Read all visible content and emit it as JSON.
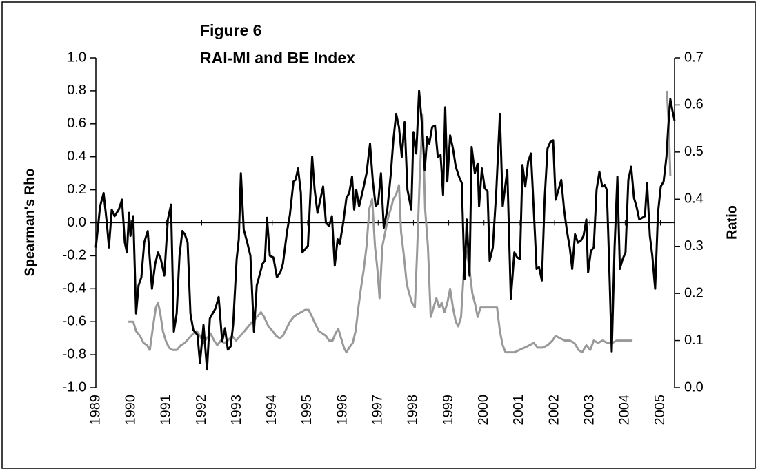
{
  "chart_data": {
    "type": "line",
    "title": "Figure 6",
    "subtitle": "RAI-MI and BE Index",
    "y_label": "Spearman's Rho",
    "y2_label": "Ratio",
    "xlim": [
      1989,
      2005.4
    ],
    "xticks": [
      1989,
      1990,
      1991,
      1992,
      1993,
      1994,
      1995,
      1996,
      1997,
      1998,
      1999,
      2000,
      2001,
      2002,
      2003,
      2004,
      2005
    ],
    "ylim": [
      -1,
      1
    ],
    "yticks": [
      {
        "value": -1,
        "label": "-1.0"
      },
      -0.8,
      -0.6,
      -0.4,
      -0.2,
      {
        "value": 0,
        "label": "0.0"
      },
      0.2,
      0.4,
      0.6,
      0.8,
      {
        "value": 1,
        "label": "1.0"
      }
    ],
    "y2lim": [
      0,
      0.7
    ],
    "y2ticks": [
      {
        "value": 0,
        "label": "0.0"
      },
      0.1,
      0.2,
      0.3,
      0.4,
      0.5,
      0.6,
      0.7
    ],
    "series": [
      {
        "color": "#000000",
        "x": [
          1989.0,
          1989.12,
          1989.22,
          1989.31,
          1989.37,
          1989.45,
          1989.53,
          1989.65,
          1989.74,
          1989.82,
          1989.88,
          1989.94,
          1989.98,
          1990.06,
          1990.14,
          1990.21,
          1990.29,
          1990.37,
          1990.47,
          1990.59,
          1990.68,
          1990.76,
          1990.84,
          1990.94,
          1991.04,
          1991.13,
          1991.21,
          1991.29,
          1991.37,
          1991.45,
          1991.52,
          1991.6,
          1991.68,
          1991.76,
          1991.88,
          1991.95,
          1992.05,
          1992.15,
          1992.23,
          1992.31,
          1992.39,
          1992.48,
          1992.58,
          1992.66,
          1992.74,
          1992.82,
          1992.89,
          1992.99,
          1993.05,
          1993.11,
          1993.19,
          1993.29,
          1993.38,
          1993.48,
          1993.56,
          1993.66,
          1993.72,
          1993.79,
          1993.85,
          1993.93,
          1994.03,
          1994.13,
          1994.23,
          1994.3,
          1994.42,
          1994.5,
          1994.6,
          1994.66,
          1994.73,
          1994.81,
          1994.85,
          1994.93,
          1995.01,
          1995.13,
          1995.2,
          1995.28,
          1995.36,
          1995.44,
          1995.52,
          1995.61,
          1995.69,
          1995.77,
          1995.85,
          1995.91,
          1996.01,
          1996.1,
          1996.18,
          1996.26,
          1996.32,
          1996.38,
          1996.46,
          1996.57,
          1996.67,
          1996.77,
          1996.85,
          1996.93,
          1997.0,
          1997.08,
          1997.16,
          1997.26,
          1997.36,
          1997.43,
          1997.51,
          1997.59,
          1997.67,
          1997.75,
          1997.83,
          1997.94,
          1998.0,
          1998.08,
          1998.16,
          1998.24,
          1998.32,
          1998.39,
          1998.45,
          1998.53,
          1998.61,
          1998.69,
          1998.77,
          1998.84,
          1998.9,
          1998.96,
          1999.04,
          1999.12,
          1999.2,
          1999.29,
          1999.37,
          1999.45,
          1999.51,
          1999.59,
          1999.65,
          1999.74,
          1999.82,
          1999.86,
          1999.94,
          2000.02,
          2000.1,
          2000.16,
          2000.25,
          2000.35,
          2000.45,
          2000.53,
          2000.66,
          2000.76,
          2000.86,
          2000.94,
          2001.02,
          2001.09,
          2001.17,
          2001.25,
          2001.33,
          2001.41,
          2001.49,
          2001.56,
          2001.64,
          2001.72,
          2001.8,
          2001.88,
          2001.96,
          2002.03,
          2002.11,
          2002.19,
          2002.27,
          2002.35,
          2002.43,
          2002.5,
          2002.58,
          2002.66,
          2002.74,
          2002.82,
          2002.9,
          2002.95,
          2003.03,
          2003.11,
          2003.19,
          2003.27,
          2003.35,
          2003.42,
          2003.48,
          2003.54,
          2003.62,
          2003.7,
          2003.78,
          2003.85,
          2003.93,
          2004.01,
          2004.09,
          2004.17,
          2004.25,
          2004.32,
          2004.4,
          2004.48,
          2004.56,
          2004.62,
          2004.7,
          2004.77,
          2004.85,
          2004.93,
          2005.01,
          2005.09,
          2005.17,
          2005.22,
          2005.28,
          2005.34,
          2005.4
        ],
        "values": [
          -0.15,
          0.1,
          0.18,
          0.0,
          -0.15,
          0.08,
          0.04,
          0.08,
          0.14,
          -0.12,
          -0.18,
          0.06,
          -0.08,
          0.04,
          -0.55,
          -0.38,
          -0.33,
          -0.12,
          -0.05,
          -0.4,
          -0.25,
          -0.18,
          -0.22,
          -0.32,
          0.02,
          0.11,
          -0.66,
          -0.55,
          -0.2,
          -0.05,
          -0.07,
          -0.12,
          -0.55,
          -0.65,
          -0.68,
          -0.85,
          -0.62,
          -0.89,
          -0.58,
          -0.55,
          -0.52,
          -0.45,
          -0.72,
          -0.64,
          -0.77,
          -0.75,
          -0.62,
          -0.22,
          -0.1,
          0.3,
          -0.04,
          -0.12,
          -0.2,
          -0.66,
          -0.38,
          -0.3,
          -0.25,
          -0.23,
          0.03,
          -0.2,
          -0.21,
          -0.33,
          -0.3,
          -0.25,
          -0.05,
          0.05,
          0.25,
          0.26,
          0.33,
          0.18,
          -0.18,
          -0.16,
          -0.14,
          0.4,
          0.2,
          0.06,
          0.14,
          0.22,
          0.0,
          -0.02,
          0.04,
          -0.26,
          -0.1,
          -0.13,
          0.0,
          0.15,
          0.18,
          0.28,
          0.08,
          0.2,
          0.1,
          0.2,
          0.3,
          0.48,
          0.25,
          0.1,
          0.12,
          0.3,
          -0.03,
          0.08,
          0.3,
          0.5,
          0.66,
          0.58,
          0.4,
          0.61,
          0.2,
          0.08,
          0.55,
          0.42,
          0.8,
          0.6,
          0.32,
          0.52,
          0.48,
          0.58,
          0.59,
          0.4,
          0.41,
          0.17,
          0.7,
          0.25,
          0.53,
          0.45,
          0.34,
          0.28,
          0.24,
          -0.34,
          0.02,
          -0.32,
          0.46,
          0.3,
          0.36,
          0.1,
          0.33,
          0.21,
          0.19,
          -0.23,
          -0.15,
          0.2,
          0.66,
          0.1,
          0.32,
          -0.46,
          -0.18,
          -0.21,
          -0.22,
          0.35,
          0.22,
          0.37,
          0.42,
          0.08,
          -0.28,
          -0.27,
          -0.35,
          0.15,
          0.45,
          0.49,
          0.5,
          0.14,
          0.2,
          0.26,
          0.08,
          -0.05,
          -0.15,
          -0.28,
          -0.07,
          -0.12,
          -0.11,
          -0.08,
          0.02,
          -0.3,
          -0.17,
          -0.15,
          0.2,
          0.31,
          0.22,
          0.23,
          0.2,
          -0.2,
          -0.78,
          -0.15,
          0.28,
          -0.28,
          -0.22,
          -0.18,
          0.26,
          0.34,
          0.15,
          0.1,
          0.02,
          0.03,
          0.04,
          0.24,
          -0.08,
          -0.2,
          -0.4,
          0.06,
          0.22,
          0.25,
          0.4,
          0.58,
          0.75,
          0.68,
          0.62
        ]
      },
      {
        "color": "#999999",
        "axis": "y2",
        "x": [
          1989.92,
          1990.06,
          1990.14,
          1990.25,
          1990.35,
          1990.45,
          1990.53,
          1990.62,
          1990.7,
          1990.76,
          1990.82,
          1990.9,
          1990.98,
          1991.07,
          1991.17,
          1991.29,
          1991.41,
          1991.52,
          1991.64,
          1991.76,
          1991.86,
          1991.95,
          1992.05,
          1992.15,
          1992.25,
          1992.35,
          1992.44,
          1992.54,
          1992.64,
          1992.74,
          1992.86,
          1992.97,
          1993.09,
          1993.21,
          1993.32,
          1993.44,
          1993.56,
          1993.68,
          1993.77,
          1993.89,
          1994.01,
          1994.11,
          1994.21,
          1994.3,
          1994.4,
          1994.5,
          1994.6,
          1994.69,
          1994.81,
          1994.93,
          1995.03,
          1995.13,
          1995.22,
          1995.32,
          1995.42,
          1995.52,
          1995.61,
          1995.71,
          1995.79,
          1995.87,
          1995.95,
          1996.03,
          1996.1,
          1996.18,
          1996.28,
          1996.36,
          1996.44,
          1996.51,
          1996.59,
          1996.67,
          1996.75,
          1996.83,
          1996.91,
          1996.98,
          1997.04,
          1997.12,
          1997.2,
          1997.28,
          1997.36,
          1997.43,
          1997.51,
          1997.59,
          1997.65,
          1997.73,
          1997.81,
          1997.88,
          1997.96,
          1998.04,
          1998.1,
          1998.18,
          1998.26,
          1998.33,
          1998.41,
          1998.49,
          1998.57,
          1998.65,
          1998.73,
          1998.8,
          1998.88,
          1998.96,
          1999.04,
          1999.12,
          1999.2,
          1999.27,
          1999.35,
          1999.43,
          1999.51,
          1999.59,
          1999.67,
          1999.74,
          1999.82,
          1999.9,
          2000.02,
          2000.14,
          2000.25,
          2000.37,
          2000.45,
          2000.53,
          2000.61,
          2000.72,
          2000.86,
          2001.0,
          2001.15,
          2001.29,
          2001.41,
          2001.52,
          2001.66,
          2001.8,
          2001.94,
          2002.03,
          2002.15,
          2002.29,
          2002.43,
          2002.56,
          2002.68,
          2002.78,
          2002.9,
          2003.01,
          2003.11,
          2003.23,
          2003.36,
          2003.5,
          2003.64,
          2003.76,
          2003.89,
          2004.03,
          2004.17,
          2004.21,
          2004.6,
          2005.18,
          2005.24,
          2005.28
        ],
        "values": [
          0.14,
          0.14,
          0.12,
          0.11,
          0.095,
          0.09,
          0.08,
          0.13,
          0.17,
          0.18,
          0.16,
          0.12,
          0.1,
          0.085,
          0.08,
          0.08,
          0.09,
          0.095,
          0.105,
          0.115,
          0.12,
          0.11,
          0.095,
          0.105,
          0.115,
          0.1,
          0.09,
          0.1,
          0.095,
          0.1,
          0.11,
          0.1,
          0.11,
          0.12,
          0.13,
          0.14,
          0.15,
          0.16,
          0.15,
          0.13,
          0.12,
          0.11,
          0.105,
          0.11,
          0.125,
          0.14,
          0.15,
          0.155,
          0.16,
          0.165,
          0.165,
          0.15,
          0.135,
          0.12,
          0.115,
          0.11,
          0.1,
          0.1,
          0.115,
          0.125,
          0.105,
          0.085,
          0.075,
          0.085,
          0.095,
          0.12,
          0.17,
          0.21,
          0.25,
          0.3,
          0.38,
          0.4,
          0.3,
          0.25,
          0.19,
          0.3,
          0.33,
          0.36,
          0.38,
          0.4,
          0.41,
          0.43,
          0.33,
          0.28,
          0.22,
          0.2,
          0.18,
          0.17,
          0.28,
          0.45,
          0.58,
          0.38,
          0.3,
          0.15,
          0.17,
          0.19,
          0.17,
          0.18,
          0.16,
          0.18,
          0.21,
          0.17,
          0.14,
          0.13,
          0.15,
          0.25,
          0.29,
          0.25,
          0.2,
          0.18,
          0.15,
          0.17,
          0.17,
          0.17,
          0.17,
          0.17,
          0.12,
          0.09,
          0.075,
          0.075,
          0.075,
          0.08,
          0.085,
          0.09,
          0.095,
          0.085,
          0.085,
          0.09,
          0.1,
          0.11,
          0.105,
          0.1,
          0.1,
          0.095,
          0.08,
          0.075,
          0.09,
          0.08,
          0.1,
          0.095,
          0.1,
          0.095,
          0.095,
          0.1,
          0.1,
          0.1,
          0.1,
          0.1,
          null,
          0.63,
          0.55,
          0.45
        ]
      }
    ]
  }
}
